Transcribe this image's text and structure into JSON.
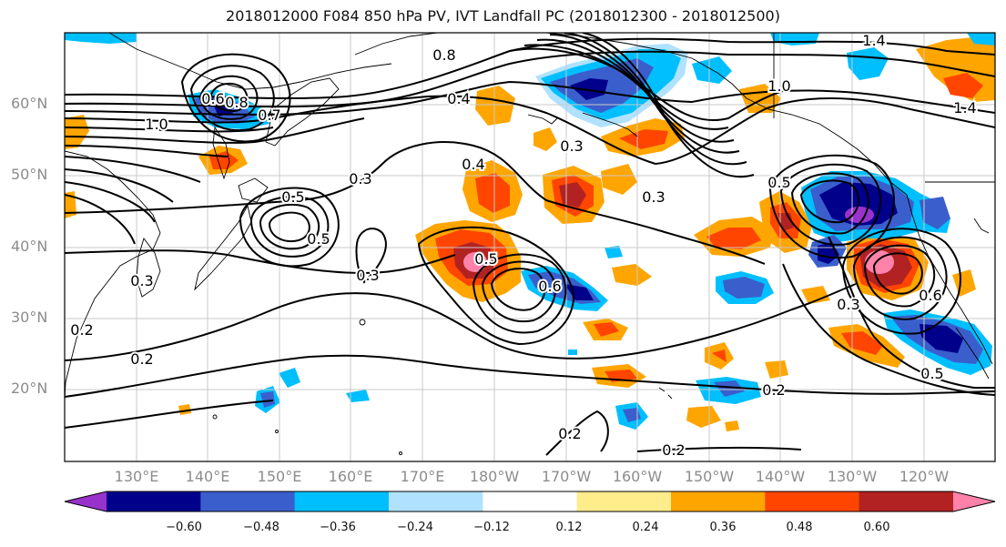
{
  "title": "2018012000 F084 850 hPa PV, IVT Landfall PC (2018012300 - 2018012500)",
  "lat_labels": [
    "60°N",
    "50°N",
    "40°N",
    "30°N",
    "20°N"
  ],
  "lon_labels": [
    "130°E",
    "140°E",
    "150°E",
    "160°E",
    "170°E",
    "180°W",
    "170°W",
    "160°W",
    "150°W",
    "140°W",
    "130°W",
    "120°W"
  ],
  "colorbar": {
    "colors": [
      "#9932cc",
      "#00008b",
      "#3a5fcd",
      "#00bfff",
      "#b0e2ff",
      "#ffffff",
      "#ffec8b",
      "#ffa500",
      "#ff4500",
      "#b22222",
      "#ff82ab"
    ],
    "tick_labels": [
      "−0.60",
      "−0.48",
      "−0.36",
      "−0.24",
      "−0.12",
      "0.12",
      "0.24",
      "0.36",
      "0.48",
      "0.60"
    ]
  },
  "contour_labels": [
    "0.8",
    "0.4",
    "1.4",
    "1.4",
    "0.8",
    "1.0",
    "1.0",
    "0.7",
    "0.3",
    "0.3",
    "0.4",
    "0.3",
    "0.5",
    "0.3",
    "0.5",
    "0.3",
    "0.6",
    "0.5",
    "0.6",
    "0.2",
    "0.2",
    "0.2",
    "0.2",
    "0.5",
    "0.3",
    "0.6",
    "0.5",
    "0.2"
  ]
}
